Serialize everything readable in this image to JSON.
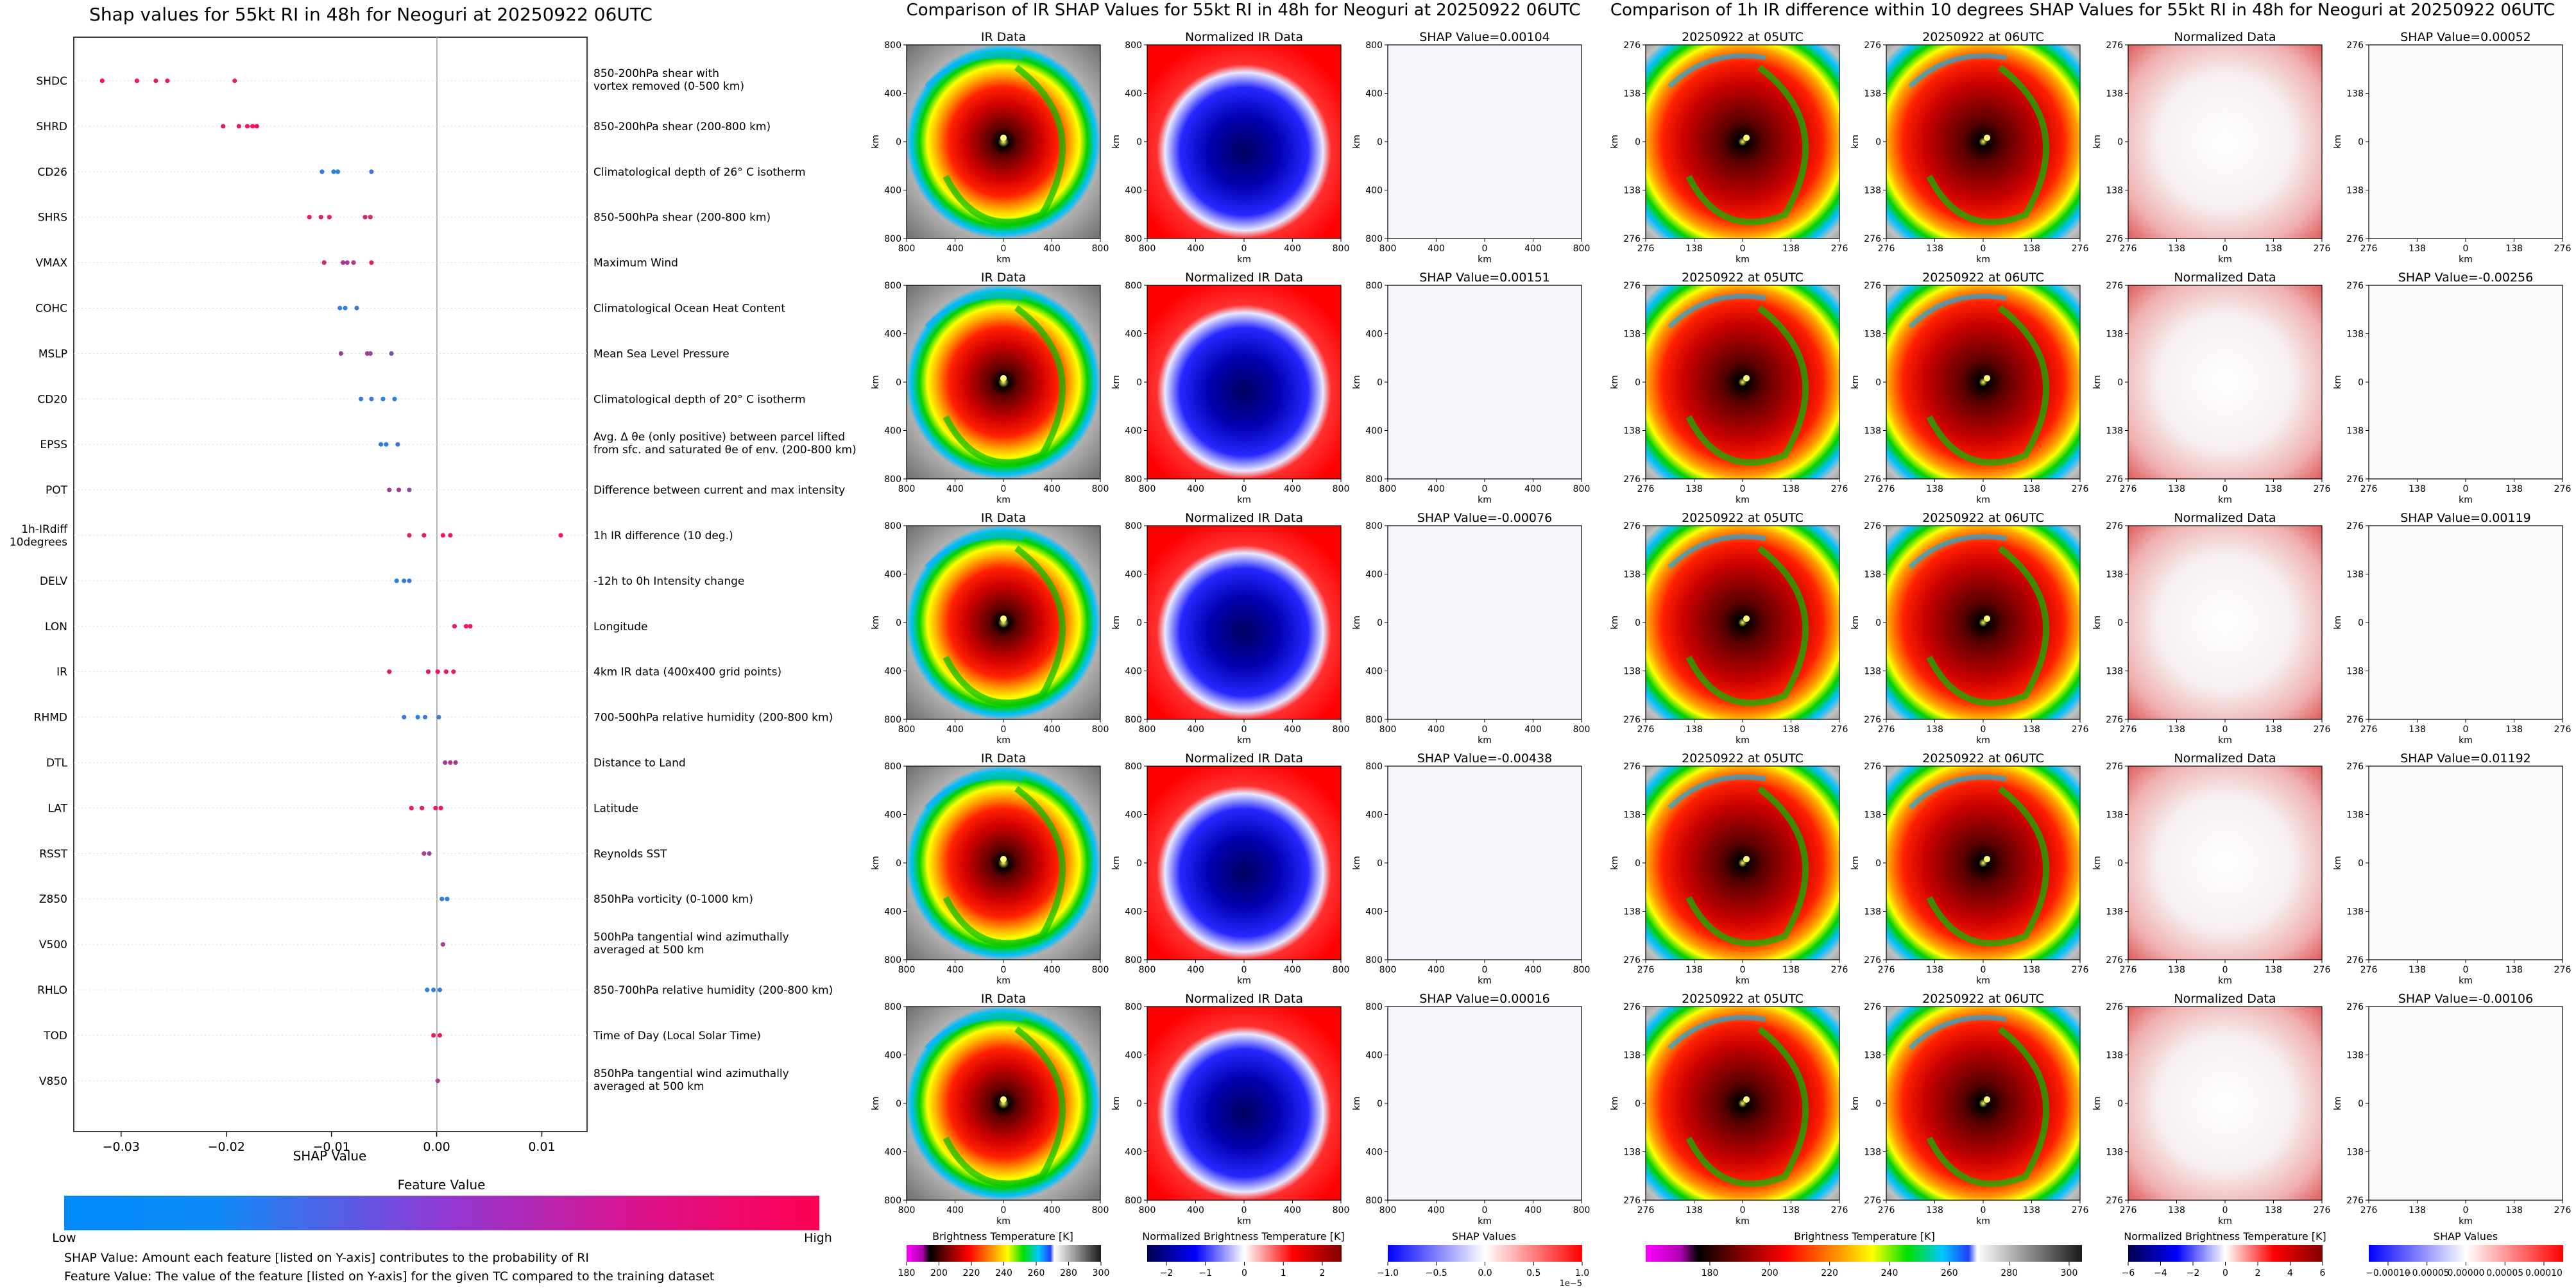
{
  "beeswarm": {
    "title": "Shap values for 55kt RI in 48h for Neoguri at 20250922 06UTC",
    "xlabel": "SHAP Value",
    "colorbar_title": "Feature Value",
    "colorbar_low": "Low",
    "colorbar_high": "High",
    "note1": "SHAP Value: Amount each feature [listed on Y-axis] contributes to the probability of RI",
    "note2": "Feature Value: The value of the feature [listed on Y-axis] for the given TC compared to the training dataset",
    "colors": {
      "low": "#1e88e5",
      "high": "#ff0d57"
    }
  },
  "panel_ir": {
    "title": "Comparison of IR SHAP Values for 55kt RI in 48h for Neoguri at 20250922 06UTC",
    "col_titles": [
      "IR Data",
      "Normalized IR Data"
    ],
    "shap_titles": [
      "SHAP Value=0.00104",
      "SHAP Value=0.00151",
      "SHAP Value=-0.00076",
      "SHAP Value=-0.00438",
      "SHAP Value=0.00016"
    ],
    "x_ticks": [
      "800",
      "400",
      "0",
      "400",
      "800"
    ],
    "y_ticks": [
      "800",
      "400",
      "0",
      "400",
      "800"
    ],
    "axis_label": "km",
    "cbar1": {
      "label": "Brightness Temperature [K]",
      "ticks": [
        "180",
        "200",
        "220",
        "240",
        "260",
        "280",
        "300"
      ]
    },
    "cbar2": {
      "label": "Normalized Brightness Temperature [K]",
      "ticks": [
        "−2",
        "−1",
        "0",
        "1",
        "2"
      ]
    },
    "cbar3": {
      "label": "SHAP Values",
      "ticks": [
        "−1.0",
        "−0.5",
        "0.0",
        "0.5",
        "1.0"
      ],
      "exponent": "1e−5"
    }
  },
  "panel_diff": {
    "title": "Comparison of 1h IR difference within 10 degrees SHAP Values for 55kt RI in 48h for Neoguri at 20250922 06UTC",
    "col_titles": [
      "20250922 at 05UTC",
      "20250922 at 06UTC",
      "Normalized Data"
    ],
    "shap_titles": [
      "SHAP Value=0.00052",
      "SHAP Value=-0.00256",
      "SHAP Value=0.00119",
      "SHAP Value=0.01192",
      "SHAP Value=-0.00106"
    ],
    "x_ticks": [
      "276",
      "138",
      "0",
      "138",
      "276"
    ],
    "y_ticks": [
      "276",
      "138",
      "0",
      "138",
      "276"
    ],
    "axis_label": "km",
    "cbar1": {
      "label": "Brightness Temperature [K]",
      "ticks": [
        "180",
        "200",
        "220",
        "240",
        "260",
        "280",
        "300"
      ]
    },
    "cbar2": {
      "label": "Normalized Brightness Temperature [K]",
      "ticks": [
        "−6",
        "−4",
        "−2",
        "0",
        "2",
        "4",
        "6"
      ]
    },
    "cbar3": {
      "label": "SHAP Values",
      "ticks": [
        "−0.00010",
        "−0.00005",
        "0.00000",
        "0.00005",
        "0.00010"
      ]
    }
  },
  "chart_data": [
    {
      "type": "scatter",
      "title": "Shap values for 55kt RI in 48h for Neoguri at 20250922 06UTC",
      "xlabel": "SHAP Value",
      "ylabel": "",
      "xlim": [
        -0.0345,
        0.0143
      ],
      "xticks": [
        -0.03,
        -0.02,
        -0.01,
        0.0,
        0.01
      ],
      "xtick_labels": [
        "−0.03",
        "−0.02",
        "−0.01",
        "0.00",
        "0.01"
      ],
      "features": [
        {
          "name": "SHDC",
          "desc": "850-200hPa shear with\nvortex removed (0-500 km)",
          "points": [
            [
              -0.0318,
              1
            ],
            [
              -0.0285,
              0.95
            ],
            [
              -0.0267,
              0.9
            ],
            [
              -0.0256,
              0.95
            ],
            [
              -0.0192,
              0.85
            ]
          ]
        },
        {
          "name": "SHRD",
          "desc": "850-200hPa shear (200-800 km)",
          "points": [
            [
              -0.0203,
              0.85
            ],
            [
              -0.0188,
              0.9
            ],
            [
              -0.018,
              0.95
            ],
            [
              -0.0175,
              1
            ],
            [
              -0.0171,
              1
            ]
          ]
        },
        {
          "name": "CD26",
          "desc": "Climatological depth of 26° C isotherm",
          "points": [
            [
              -0.0109,
              0.1
            ],
            [
              -0.0098,
              0.05
            ],
            [
              -0.0094,
              0.05
            ],
            [
              -0.0062,
              0.15
            ]
          ]
        },
        {
          "name": "SHRS",
          "desc": "850-500hPa shear (200-800 km)",
          "points": [
            [
              -0.0121,
              0.9
            ],
            [
              -0.011,
              0.85
            ],
            [
              -0.0102,
              0.9
            ],
            [
              -0.0068,
              0.85
            ],
            [
              -0.0063,
              0.8
            ]
          ]
        },
        {
          "name": "VMAX",
          "desc": "Maximum Wind",
          "points": [
            [
              -0.0107,
              0.8
            ],
            [
              -0.0089,
              0.65
            ],
            [
              -0.0085,
              0.6
            ],
            [
              -0.0079,
              0.65
            ],
            [
              -0.0062,
              0.85
            ]
          ]
        },
        {
          "name": "COHC",
          "desc": "Climatological Ocean Heat Content",
          "points": [
            [
              -0.0092,
              0.1
            ],
            [
              -0.0087,
              0.05
            ],
            [
              -0.0076,
              0.15
            ]
          ]
        },
        {
          "name": "MSLP",
          "desc": "Mean Sea Level Pressure",
          "points": [
            [
              -0.0091,
              0.55
            ],
            [
              -0.0066,
              0.6
            ],
            [
              -0.0063,
              0.55
            ],
            [
              -0.0043,
              0.4
            ]
          ]
        },
        {
          "name": "CD20",
          "desc": "Climatological depth of 20° C isotherm",
          "points": [
            [
              -0.0072,
              0.1
            ],
            [
              -0.0062,
              0.15
            ],
            [
              -0.0051,
              0.05
            ],
            [
              -0.004,
              0.1
            ]
          ]
        },
        {
          "name": "EPSS",
          "desc": "Avg. Δ θe (only positive) between parcel lifted\nfrom sfc. and saturated θe of env. (200-800 km)",
          "points": [
            [
              -0.0053,
              0.1
            ],
            [
              -0.0048,
              0.05
            ],
            [
              -0.0037,
              0.15
            ]
          ]
        },
        {
          "name": "POT",
          "desc": "Difference between current and max intensity",
          "points": [
            [
              -0.0045,
              0.55
            ],
            [
              -0.0036,
              0.6
            ],
            [
              -0.0026,
              0.5
            ]
          ]
        },
        {
          "name": "1h-IRdiff 10degrees",
          "desc": "1h IR difference (10 deg.)",
          "points": [
            [
              -0.0026,
              0.85
            ],
            [
              -0.0012,
              0.9
            ],
            [
              0.0006,
              0.95
            ],
            [
              0.0013,
              0.9
            ],
            [
              0.0118,
              1
            ]
          ]
        },
        {
          "name": "DELV",
          "desc": "-12h to 0h Intensity change",
          "points": [
            [
              -0.0038,
              0.05
            ],
            [
              -0.0031,
              0.1
            ],
            [
              -0.0026,
              0.1
            ]
          ]
        },
        {
          "name": "LON",
          "desc": "Longitude",
          "points": [
            [
              0.0017,
              0.95
            ],
            [
              0.0028,
              0.9
            ],
            [
              0.0032,
              0.9
            ]
          ]
        },
        {
          "name": "IR",
          "desc": "4km IR data (400x400 grid points)",
          "points": [
            [
              -0.0045,
              0.85
            ],
            [
              -0.0008,
              0.9
            ],
            [
              0.0001,
              0.95
            ],
            [
              0.0009,
              0.9
            ],
            [
              0.0016,
              0.85
            ]
          ]
        },
        {
          "name": "RHMD",
          "desc": "700-500hPa relative humidity (200-800 km)",
          "points": [
            [
              -0.0031,
              0.1
            ],
            [
              -0.0018,
              0.05
            ],
            [
              -0.0011,
              0.1
            ],
            [
              0.0002,
              0.15
            ]
          ]
        },
        {
          "name": "DTL",
          "desc": "Distance to Land",
          "points": [
            [
              0.0008,
              0.6
            ],
            [
              0.0013,
              0.65
            ],
            [
              0.0018,
              0.6
            ]
          ]
        },
        {
          "name": "LAT",
          "desc": "Latitude",
          "points": [
            [
              -0.0024,
              0.9
            ],
            [
              -0.0014,
              0.85
            ],
            [
              -0.0001,
              0.9
            ],
            [
              0.0004,
              0.95
            ]
          ]
        },
        {
          "name": "RSST",
          "desc": "Reynolds SST",
          "points": [
            [
              -0.0012,
              0.6
            ],
            [
              -0.0007,
              0.55
            ]
          ]
        },
        {
          "name": "Z850",
          "desc": "850hPa vorticity (0-1000 km)",
          "points": [
            [
              0.0005,
              0.1
            ],
            [
              0.001,
              0.05
            ]
          ]
        },
        {
          "name": "V500",
          "desc": "500hPa tangential wind azimuthally\naveraged at 500 km",
          "points": [
            [
              0.0006,
              0.55
            ]
          ]
        },
        {
          "name": "RHLO",
          "desc": "850-700hPa relative humidity (200-800 km)",
          "points": [
            [
              -0.0009,
              0.1
            ],
            [
              -0.0003,
              0.05
            ],
            [
              0.0003,
              0.1
            ]
          ]
        },
        {
          "name": "TOD",
          "desc": "Time of Day (Local Solar Time)",
          "points": [
            [
              -0.0003,
              0.9
            ],
            [
              0.0003,
              0.85
            ]
          ]
        },
        {
          "name": "V850",
          "desc": "850hPa tangential wind azimuthally\naveraged at 500 km",
          "points": [
            [
              0.0001,
              0.6
            ]
          ]
        }
      ]
    }
  ]
}
